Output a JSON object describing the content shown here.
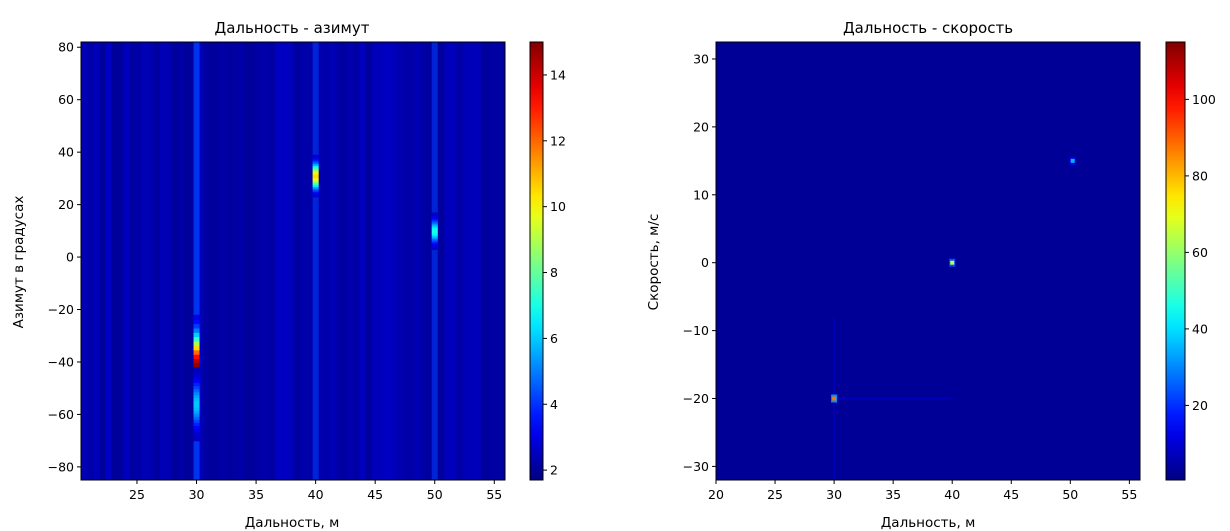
{
  "colors": {
    "colormap": "jet",
    "background": "#00008f"
  },
  "chart_data": [
    {
      "type": "heatmap",
      "title": "Дальность - азимут",
      "xlabel": "Дальность, м",
      "ylabel": "Азимут в градусах",
      "xlim": [
        20.3,
        55.9
      ],
      "ylim": [
        -85,
        82
      ],
      "xticks": [
        25,
        30,
        35,
        40,
        45,
        50,
        55
      ],
      "yticks": [
        -80,
        -60,
        -40,
        -20,
        0,
        20,
        40,
        60,
        80
      ],
      "colorbar": {
        "range": [
          1.7,
          15
        ],
        "ticks": [
          2,
          4,
          6,
          8,
          10,
          12,
          14
        ]
      },
      "background_level": 2.2,
      "peaks": [
        {
          "range": 30.0,
          "az_center": -42,
          "az_half_width": 20,
          "value": 14.8
        },
        {
          "range": 30.0,
          "az_center": -56,
          "az_half_width": 14,
          "value": 6.0
        },
        {
          "range": 40.0,
          "az_center": 31,
          "az_half_width": 8,
          "value": 10.5
        },
        {
          "range": 50.0,
          "az_center": 10,
          "az_half_width": 7,
          "value": 7.0
        }
      ]
    },
    {
      "type": "heatmap",
      "title": "Дальность - скорость",
      "xlabel": "Дальность, м",
      "ylabel": "Скорость, м/с",
      "xlim": [
        20,
        55.9
      ],
      "ylim": [
        -32,
        32.5
      ],
      "xticks": [
        20,
        25,
        30,
        35,
        40,
        45,
        50,
        55
      ],
      "yticks": [
        -30,
        -20,
        -10,
        0,
        10,
        20,
        30
      ],
      "colorbar": {
        "range": [
          0.5,
          115
        ],
        "ticks": [
          20,
          40,
          60,
          80,
          100
        ]
      },
      "background_level": 3,
      "peaks": [
        {
          "range": 30.0,
          "velocity": -20.0,
          "value": 88
        },
        {
          "range": 40.0,
          "velocity": 0.0,
          "value": 65
        },
        {
          "range": 50.2,
          "velocity": 15.0,
          "value": 35
        }
      ]
    }
  ]
}
